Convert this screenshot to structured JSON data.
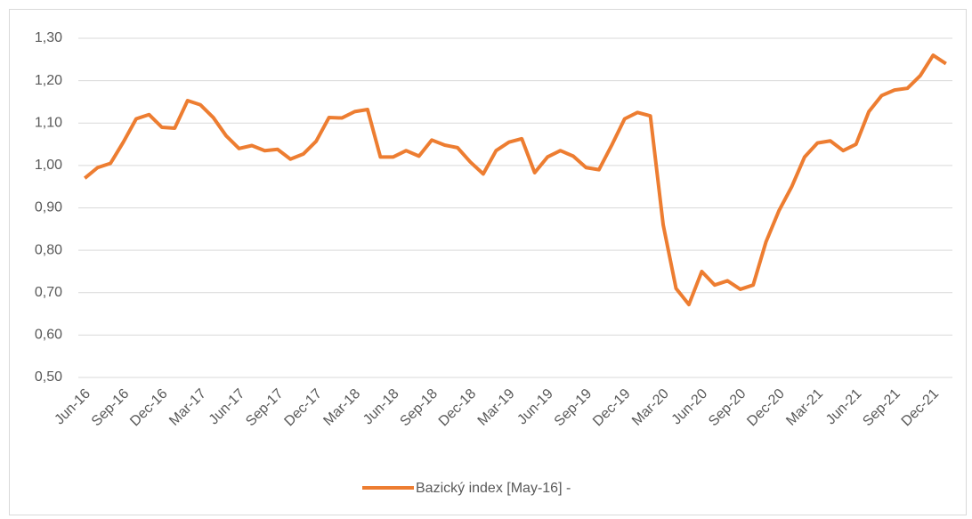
{
  "chart_data": {
    "type": "line",
    "categories": [
      "Jun-16",
      null,
      null,
      "Sep-16",
      null,
      null,
      "Dec-16",
      null,
      null,
      "Mar-17",
      null,
      null,
      "Jun-17",
      null,
      null,
      "Sep-17",
      null,
      null,
      "Dec-17",
      null,
      null,
      "Mar-18",
      null,
      null,
      "Jun-18",
      null,
      null,
      "Sep-18",
      null,
      null,
      "Dec-18",
      null,
      null,
      "Mar-19",
      null,
      null,
      "Jun-19",
      null,
      null,
      "Sep-19",
      null,
      null,
      "Dec-19",
      null,
      null,
      "Mar-20",
      null,
      null,
      "Jun-20",
      null,
      null,
      "Sep-20",
      null,
      null,
      "Dec-20",
      null,
      null,
      "Mar-21",
      null,
      null,
      "Jun-21",
      null,
      null,
      "Sep-21",
      null,
      null,
      "Dec-21",
      null
    ],
    "series": [
      {
        "name": "Bazický index  [May-16] -",
        "color": "#ed7d31",
        "values": [
          0.97,
          0.995,
          1.005,
          1.055,
          1.11,
          1.12,
          1.09,
          1.088,
          1.153,
          1.143,
          1.113,
          1.07,
          1.04,
          1.047,
          1.035,
          1.038,
          1.015,
          1.027,
          1.057,
          1.113,
          1.112,
          1.127,
          1.132,
          1.02,
          1.02,
          1.035,
          1.022,
          1.06,
          1.048,
          1.042,
          1.008,
          0.98,
          1.035,
          1.055,
          1.063,
          0.983,
          1.02,
          1.035,
          1.022,
          0.995,
          0.99,
          1.048,
          1.11,
          1.125,
          1.117,
          0.86,
          0.71,
          0.672,
          0.75,
          0.718,
          0.728,
          0.708,
          0.718,
          0.82,
          0.893,
          0.95,
          1.02,
          1.053,
          1.058,
          1.035,
          1.05,
          1.127,
          1.165,
          1.178,
          1.182,
          1.212,
          1.26,
          1.24
        ]
      }
    ],
    "ylim": [
      0.5,
      1.3
    ],
    "yticks": [
      {
        "value": 0.5,
        "label": "0,50"
      },
      {
        "value": 0.6,
        "label": "0,60"
      },
      {
        "value": 0.7,
        "label": "0,70"
      },
      {
        "value": 0.8,
        "label": "0,80"
      },
      {
        "value": 0.9,
        "label": "0,90"
      },
      {
        "value": 1.0,
        "label": "1,00"
      },
      {
        "value": 1.1,
        "label": "1,10"
      },
      {
        "value": 1.2,
        "label": "1,20"
      },
      {
        "value": 1.3,
        "label": "1,30"
      }
    ],
    "grid": true,
    "legend": "bottom"
  }
}
